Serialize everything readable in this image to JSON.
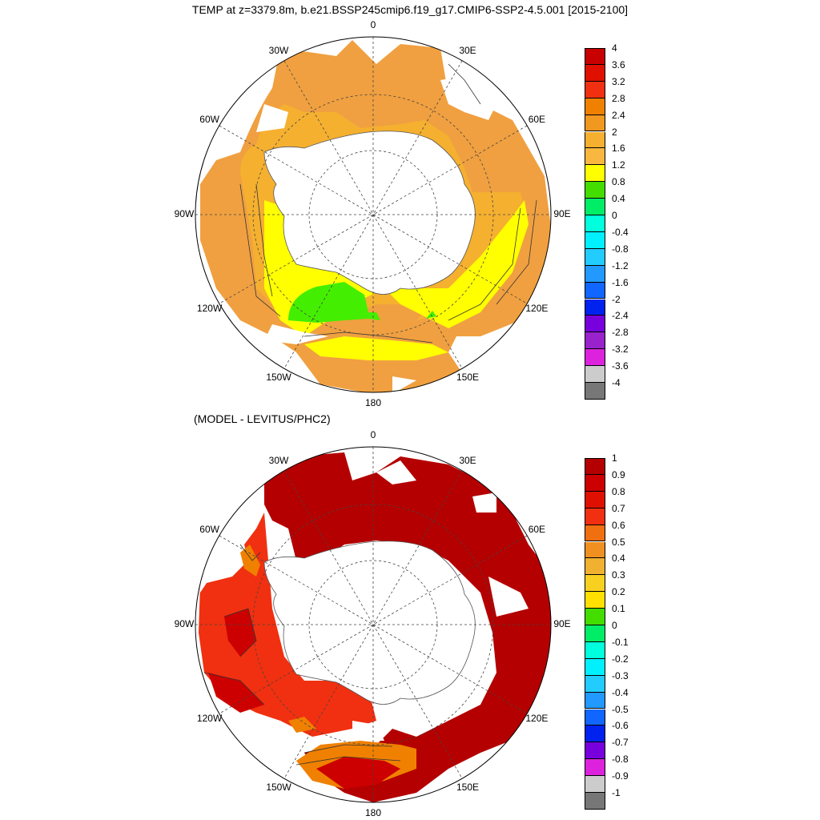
{
  "title": "TEMP at z=3379.8m, b.e21.BSSP245cmip6.f19_g17.CMIP6-SSP2-4.5.001 [2015-2100]",
  "subtitle": "(MODEL - LEVITUS/PHC2)",
  "lon_labels": [
    {
      "text": "0",
      "angle": 0
    },
    {
      "text": "30E",
      "angle": 30
    },
    {
      "text": "60E",
      "angle": 60
    },
    {
      "text": "90E",
      "angle": 90
    },
    {
      "text": "120E",
      "angle": 120
    },
    {
      "text": "150E",
      "angle": 150
    },
    {
      "text": "180",
      "angle": 180
    },
    {
      "text": "150W",
      "angle": 210
    },
    {
      "text": "120W",
      "angle": 240
    },
    {
      "text": "90W",
      "angle": 270
    },
    {
      "text": "60W",
      "angle": 300
    },
    {
      "text": "30W",
      "angle": 330
    }
  ],
  "colorbar_top": {
    "labels": [
      "4",
      "3.6",
      "3.2",
      "2.8",
      "2.4",
      "2",
      "1.6",
      "1.2",
      "0.8",
      "0.4",
      "0",
      "-0.4",
      "-0.8",
      "-1.2",
      "-1.6",
      "-2",
      "-2.4",
      "-2.8",
      "-3.2",
      "-3.6",
      "-4"
    ],
    "colors": [
      "#c80000",
      "#e01000",
      "#f03010",
      "#f08000",
      "#f09820",
      "#f5b030",
      "#f8b840",
      "#ffff00",
      "#44dd00",
      "#00ee66",
      "#00ffdd",
      "#00f0ff",
      "#22ccff",
      "#2299ff",
      "#1166ff",
      "#0022ee",
      "#7700dd",
      "#9922cc",
      "#dd22dd",
      "#cccccc",
      "#777777"
    ]
  },
  "colorbar_bottom": {
    "labels": [
      "1",
      "0.9",
      "0.8",
      "0.7",
      "0.6",
      "0.5",
      "0.4",
      "0.3",
      "0.2",
      "0.1",
      "0",
      "-0.1",
      "-0.2",
      "-0.3",
      "-0.4",
      "-0.5",
      "-0.6",
      "-0.7",
      "-0.8",
      "-0.9",
      "-1"
    ],
    "colors": [
      "#b40000",
      "#cc0000",
      "#e01000",
      "#f03010",
      "#f07010",
      "#f09020",
      "#f0b030",
      "#f8d020",
      "#ffe000",
      "#44dd00",
      "#00ee66",
      "#00ffdd",
      "#00f0ff",
      "#22ccff",
      "#2299ff",
      "#1166ff",
      "#0022ee",
      "#7700dd",
      "#dd22dd",
      "#cccccc",
      "#777777"
    ]
  },
  "map_colors": {
    "land": "#ffffff",
    "top_main": "#f5b030",
    "top_outer": "#f0a040",
    "top_yellow": "#ffff00",
    "top_green": "#44ee00",
    "bottom_main": "#b40000",
    "bottom_red": "#f03010",
    "bottom_orange": "#f08000"
  }
}
